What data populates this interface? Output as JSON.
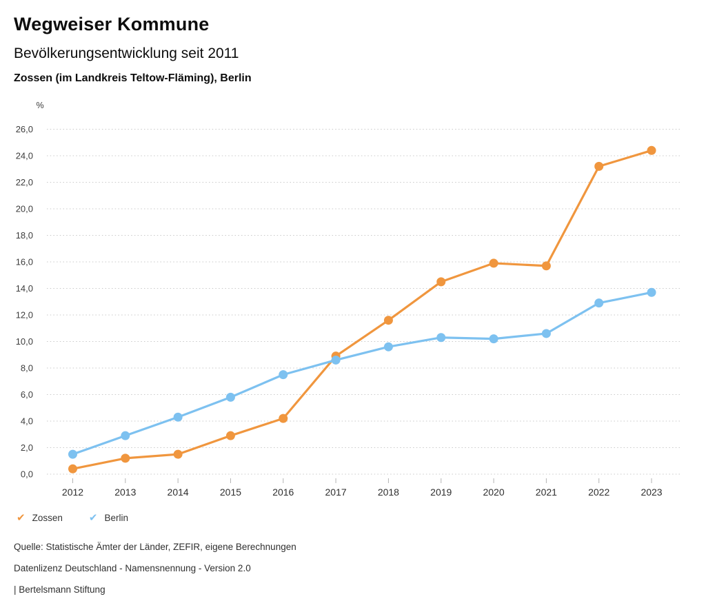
{
  "header": {
    "title": "Wegweiser Kommune",
    "subtitle": "Bevölkerungsentwicklung seit 2011",
    "region_line": "Zossen (im Landkreis Teltow-Fläming), Berlin"
  },
  "chart_data": {
    "type": "line",
    "title": "Bevölkerungsentwicklung seit 2011",
    "unit_label": "%",
    "x": [
      "2012",
      "2013",
      "2014",
      "2015",
      "2016",
      "2017",
      "2018",
      "2019",
      "2020",
      "2021",
      "2022",
      "2023"
    ],
    "series": [
      {
        "name": "Zossen",
        "color": "#F0963E",
        "values": [
          0.4,
          1.2,
          1.5,
          2.9,
          4.2,
          8.9,
          11.6,
          14.5,
          15.9,
          15.7,
          23.2,
          24.4
        ]
      },
      {
        "name": "Berlin",
        "color": "#7DC1F0",
        "values": [
          1.5,
          2.9,
          4.3,
          5.8,
          7.5,
          8.6,
          9.6,
          10.3,
          10.2,
          10.6,
          12.9,
          13.7
        ]
      }
    ],
    "ylim": [
      0,
      26
    ],
    "ytick_step": 2,
    "ytick_labels": [
      "0,0",
      "2,0",
      "4,0",
      "6,0",
      "8,0",
      "10,0",
      "12,0",
      "14,0",
      "16,0",
      "18,0",
      "20,0",
      "22,0",
      "24,0",
      "26,0"
    ],
    "grid": "horizontal-dotted",
    "legend_position": "bottom-left"
  },
  "legend": {
    "check_glyph": "✔"
  },
  "footer": {
    "source": "Quelle: Statistische Ämter der Länder, ZEFIR, eigene Berechnungen",
    "license": "Datenlizenz Deutschland - Namensnennung - Version 2.0",
    "attribution": "| Bertelsmann Stiftung"
  }
}
